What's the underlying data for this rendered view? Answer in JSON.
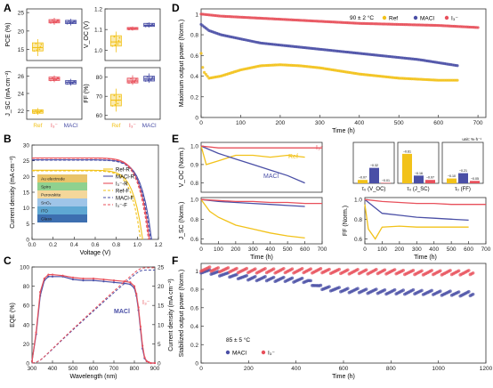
{
  "colors": {
    "ref": "#f2c21a",
    "i3": "#e8505b",
    "maci": "#4a4fa6",
    "axis": "#333333",
    "panel_label": "#000000"
  },
  "panels": {
    "A": "A",
    "B": "B",
    "C": "C",
    "D": "D",
    "E": "E",
    "F": "F"
  },
  "chart_data": [
    {
      "id": "A",
      "type": "box",
      "subplots": [
        {
          "ylabel": "PCE (%)",
          "yticks": [
            "15",
            "20",
            "25"
          ],
          "ylim": [
            12,
            26
          ],
          "groups": [
            {
              "label": "Ref",
              "median": 15.5,
              "q1": 14.6,
              "q3": 16.8,
              "min": 13.2,
              "max": 17.8
            },
            {
              "label": "I₃⁻",
              "median": 22.6,
              "q1": 22.2,
              "q3": 23.1,
              "min": 21.7,
              "max": 23.6
            },
            {
              "label": "MACl",
              "median": 22.4,
              "q1": 22.0,
              "q3": 22.9,
              "min": 21.5,
              "max": 23.3
            }
          ]
        },
        {
          "ylabel": "V_OC (V)",
          "yticks": [
            "1.0",
            "1.1",
            "1.2"
          ],
          "ylim": [
            0.95,
            1.2
          ],
          "groups": [
            {
              "label": "Ref",
              "median": 1.04,
              "q1": 1.02,
              "q3": 1.07,
              "min": 0.99,
              "max": 1.09
            },
            {
              "label": "I₃⁻",
              "median": 1.105,
              "q1": 1.1,
              "q3": 1.11,
              "min": 1.095,
              "max": 1.115
            },
            {
              "label": "MACl",
              "median": 1.12,
              "q1": 1.115,
              "q3": 1.13,
              "min": 1.11,
              "max": 1.135
            }
          ]
        },
        {
          "ylabel": "J_SC (mA cm⁻²)",
          "yticks": [
            "22",
            "24",
            "26"
          ],
          "ylim": [
            21,
            27
          ],
          "groups": [
            {
              "label": "Ref",
              "median": 21.9,
              "q1": 21.7,
              "q3": 22.1,
              "min": 21.5,
              "max": 22.3
            },
            {
              "label": "I₃⁻",
              "median": 25.7,
              "q1": 25.5,
              "q3": 25.9,
              "min": 25.3,
              "max": 26.1
            },
            {
              "label": "MACl",
              "median": 25.3,
              "q1": 25.1,
              "q3": 25.5,
              "min": 24.9,
              "max": 25.7
            }
          ]
        },
        {
          "ylabel": "FF (%)",
          "yticks": [
            "60",
            "70",
            "80"
          ],
          "ylim": [
            58,
            85
          ],
          "groups": [
            {
              "label": "Ref",
              "median": 68,
              "q1": 65,
              "q3": 71,
              "min": 62,
              "max": 74
            },
            {
              "label": "I₃⁻",
              "median": 78,
              "q1": 77,
              "q3": 79.5,
              "min": 76,
              "max": 81
            },
            {
              "label": "MACl",
              "median": 79,
              "q1": 78,
              "q3": 80.5,
              "min": 77,
              "max": 82
            }
          ]
        }
      ]
    },
    {
      "id": "B",
      "type": "line",
      "xlabel": "Voltage (V)",
      "ylabel": "Current density (mA cm⁻²)",
      "xlim": [
        0,
        1.2
      ],
      "ylim": [
        0,
        30
      ],
      "xticks": [
        "0.0",
        "0.2",
        "0.4",
        "0.6",
        "0.8",
        "1.0",
        "1.2"
      ],
      "yticks": [
        "0",
        "5",
        "10",
        "15",
        "20",
        "25",
        "30"
      ],
      "legend": [
        "Ref-R",
        "MACl-R",
        "I₃⁻-R",
        "Ref-F",
        "MACl-F",
        "I₃⁻-F"
      ],
      "series": [
        {
          "name": "Ref-R",
          "jsc": 22.0,
          "voc": 1.05,
          "style": "solid",
          "color": "ref"
        },
        {
          "name": "MACl-R",
          "jsc": 25.3,
          "voc": 1.135,
          "style": "solid",
          "color": "maci"
        },
        {
          "name": "I₃⁻-R",
          "jsc": 25.9,
          "voc": 1.115,
          "style": "solid",
          "color": "i3"
        },
        {
          "name": "Ref-F",
          "jsc": 21.8,
          "voc": 1.03,
          "style": "dashed",
          "color": "ref"
        },
        {
          "name": "MACl-F",
          "jsc": 25.2,
          "voc": 1.125,
          "style": "dashed",
          "color": "maci"
        },
        {
          "name": "I₃⁻-F",
          "jsc": 25.8,
          "voc": 1.105,
          "style": "dashed",
          "color": "i3"
        }
      ],
      "stack": [
        {
          "label": "Au electrode",
          "color": "#e9c46a"
        },
        {
          "label": "Spiro",
          "color": "#8fd18f"
        },
        {
          "label": "Perovskite",
          "color": "#f4d79a"
        },
        {
          "label": "SnO₂",
          "color": "#9fc5e8"
        },
        {
          "label": "ITO",
          "color": "#5fa8d3"
        },
        {
          "label": "Glass",
          "color": "#3d6fb0"
        }
      ]
    },
    {
      "id": "C",
      "type": "line",
      "xlabel": "Wavelength (nm)",
      "ylabel": "EQE (%)",
      "y2label": "Current density (mA cm⁻²)",
      "xlim": [
        300,
        900
      ],
      "ylim": [
        0,
        100
      ],
      "y2lim": [
        0,
        25
      ],
      "xticks": [
        "300",
        "400",
        "500",
        "600",
        "700",
        "800",
        "900"
      ],
      "yticks": [
        "0",
        "20",
        "40",
        "60",
        "80",
        "100"
      ],
      "y2ticks": [
        "0",
        "5",
        "10",
        "15",
        "20",
        "25"
      ],
      "labels": [
        "MACl",
        "I₃⁻"
      ],
      "eqe": {
        "wavelength": [
          300,
          320,
          340,
          360,
          380,
          400,
          450,
          500,
          550,
          600,
          650,
          700,
          750,
          780,
          800,
          810,
          820,
          830,
          840,
          850,
          860,
          870,
          880,
          900
        ],
        "MACl": [
          2,
          30,
          70,
          86,
          90,
          90,
          90,
          87,
          86,
          86,
          85,
          84,
          83,
          82,
          78,
          70,
          55,
          35,
          15,
          5,
          2,
          1,
          0,
          0
        ],
        "I₃⁻": [
          2,
          32,
          74,
          88,
          92,
          92,
          91,
          89,
          88,
          88,
          87,
          86,
          85,
          84,
          80,
          72,
          58,
          38,
          18,
          6,
          2,
          1,
          0,
          0
        ]
      },
      "integrated_jsc": {
        "MACl": 24.2,
        "I₃⁻": 24.8
      }
    },
    {
      "id": "D",
      "type": "line",
      "xlabel": "Time (h)",
      "ylabel": "Maximum output power (Norm.)",
      "xlim": [
        0,
        720
      ],
      "ylim": [
        0,
        1.05
      ],
      "xticks": [
        "0",
        "100",
        "200",
        "300",
        "400",
        "500",
        "600",
        "700"
      ],
      "yticks": [
        "0",
        "0.2",
        "0.4",
        "0.6",
        "0.8",
        "1"
      ],
      "annotation": "90 ± 2 °C",
      "legend": [
        "Ref",
        "MACl",
        "I₃⁻"
      ],
      "series": [
        {
          "name": "Ref",
          "x": [
            0,
            5,
            20,
            50,
            100,
            150,
            200,
            250,
            300,
            350,
            400,
            450,
            500,
            550,
            600,
            650
          ],
          "y": [
            0.62,
            0.45,
            0.38,
            0.4,
            0.46,
            0.5,
            0.51,
            0.5,
            0.48,
            0.45,
            0.42,
            0.4,
            0.38,
            0.37,
            0.36,
            0.36
          ]
        },
        {
          "name": "MACl",
          "x": [
            0,
            20,
            50,
            100,
            150,
            200,
            250,
            300,
            350,
            400,
            450,
            500,
            550,
            600,
            650
          ],
          "y": [
            0.9,
            0.84,
            0.8,
            0.76,
            0.72,
            0.7,
            0.68,
            0.66,
            0.64,
            0.62,
            0.6,
            0.58,
            0.56,
            0.53,
            0.5
          ]
        },
        {
          "name": "I₃⁻",
          "x": [
            0,
            50,
            100,
            200,
            300,
            400,
            500,
            600,
            700
          ],
          "y": [
            1.0,
            0.98,
            0.97,
            0.95,
            0.93,
            0.91,
            0.9,
            0.89,
            0.87
          ]
        }
      ]
    },
    {
      "id": "E",
      "type": "line",
      "xlabel": "Time (h)",
      "subplots": [
        {
          "ylabel": "V_OC (Norm.)",
          "ylim": [
            0.75,
            1.02
          ],
          "yticks": [
            "0.8",
            "0.9",
            "1.0"
          ],
          "xlim": [
            0,
            700
          ],
          "labels": [
            "Ref",
            "MACl",
            "I₃⁻"
          ],
          "series": [
            {
              "name": "Ref",
              "x": [
                0,
                30,
                100,
                200,
                300,
                400,
                500,
                600
              ],
              "y": [
                1.0,
                0.9,
                0.92,
                0.95,
                0.95,
                0.94,
                0.95,
                0.94
              ]
            },
            {
              "name": "MACl",
              "x": [
                0,
                100,
                200,
                300,
                400,
                500,
                600
              ],
              "y": [
                1.0,
                0.96,
                0.93,
                0.9,
                0.87,
                0.84,
                0.8
              ]
            },
            {
              "name": "I₃⁻",
              "x": [
                0,
                100,
                200,
                300,
                400,
                500,
                600,
                700
              ],
              "y": [
                1.0,
                0.99,
                0.99,
                0.99,
                0.99,
                0.99,
                0.99,
                0.99
              ]
            }
          ]
        },
        {
          "ylabel": "J_SC (Norm.)",
          "ylim": [
            0.55,
            1.02
          ],
          "yticks": [
            "0.6",
            "0.8",
            "1.0"
          ],
          "xlim": [
            0,
            700
          ],
          "series": [
            {
              "name": "Ref",
              "x": [
                0,
                50,
                100,
                200,
                300,
                400,
                500,
                600
              ],
              "y": [
                1.0,
                0.88,
                0.82,
                0.74,
                0.7,
                0.66,
                0.63,
                0.61
              ]
            },
            {
              "name": "MACl",
              "x": [
                0,
                100,
                200,
                300,
                400,
                500,
                600
              ],
              "y": [
                1.0,
                0.98,
                0.97,
                0.96,
                0.95,
                0.94,
                0.93
              ]
            },
            {
              "name": "I₃⁻",
              "x": [
                0,
                100,
                200,
                300,
                400,
                500,
                600,
                700
              ],
              "y": [
                1.0,
                0.99,
                0.98,
                0.98,
                0.97,
                0.97,
                0.96,
                0.96
              ]
            }
          ]
        },
        {
          "ylabel": "FF (Norm.)",
          "ylim": [
            0.55,
            1.02
          ],
          "yticks": [
            "0.6",
            "0.8",
            "1.0"
          ],
          "xlim": [
            0,
            700
          ],
          "series": [
            {
              "name": "Ref",
              "x": [
                0,
                20,
                60,
                100,
                200,
                300,
                400,
                500,
                600
              ],
              "y": [
                0.95,
                0.7,
                0.6,
                0.72,
                0.73,
                0.72,
                0.72,
                0.72,
                0.72
              ]
            },
            {
              "name": "MACl",
              "x": [
                0,
                100,
                200,
                300,
                400,
                500,
                600
              ],
              "y": [
                1.0,
                0.86,
                0.84,
                0.82,
                0.81,
                0.8,
                0.79
              ]
            },
            {
              "name": "I₃⁻",
              "x": [
                0,
                100,
                200,
                300,
                400,
                500,
                600,
                700
              ],
              "y": [
                1.0,
                0.98,
                0.97,
                0.96,
                0.96,
                0.95,
                0.95,
                0.95
              ]
            }
          ]
        }
      ],
      "insets": [
        {
          "label": "τ₀ (V_OC)",
          "values": [
            {
              "name": "Ref",
              "v": 0.07
            },
            {
              "name": "MACl",
              "v": 0.32
            },
            {
              "name": "I₃⁻",
              "v": 0.01
            }
          ],
          "value_labels": [
            "~0.07",
            "~0.32",
            "~0.01"
          ]
        },
        {
          "label": "τ₀ (J_SC)",
          "values": [
            {
              "name": "Ref",
              "v": 0.61
            },
            {
              "name": "MACl",
              "v": 0.16
            },
            {
              "name": "I₃⁻",
              "v": 0.07
            }
          ],
          "value_labels": [
            "~0.61",
            "~0.16",
            "~0.07"
          ]
        },
        {
          "label": "τ₀ (FF)",
          "values": [
            {
              "name": "Ref",
              "v": 0.1
            },
            {
              "name": "MACl",
              "v": 0.21
            },
            {
              "name": "I₃⁻",
              "v": 0.05
            }
          ],
          "value_labels": [
            "~0.10",
            "~0.21",
            "~0.05"
          ],
          "unit": "unit: %·h⁻¹"
        }
      ]
    },
    {
      "id": "F",
      "type": "scatter",
      "xlabel": "Time (h)",
      "ylabel": "Stabilized output power (Norm.)",
      "xlim": [
        0,
        1200
      ],
      "ylim": [
        0,
        1.08
      ],
      "xticks": [
        "0",
        "200",
        "400",
        "600",
        "800",
        "1000",
        "1200"
      ],
      "yticks": [
        "0",
        "0.2",
        "0.4",
        "0.6",
        "0.8",
        "1"
      ],
      "annotation": "85 ± 5 °C",
      "legend": [
        "MACl",
        "I₃⁻"
      ],
      "series": [
        {
          "name": "MACl",
          "x": [
            0,
            100,
            200,
            300,
            400,
            450,
            500,
            600,
            700,
            800,
            900,
            1000,
            1100,
            1150
          ],
          "y": [
            1.0,
            0.96,
            0.92,
            0.91,
            0.9,
            0.89,
            0.82,
            0.79,
            0.78,
            0.77,
            0.77,
            0.76,
            0.75,
            0.75
          ]
        },
        {
          "name": "I₃⁻",
          "x": [
            0,
            100,
            200,
            300,
            400,
            500,
            600,
            700,
            800,
            900,
            1000,
            1100,
            1150
          ],
          "y": [
            1.02,
            1.01,
            1.0,
            1.0,
            1.0,
            1.0,
            0.99,
            0.99,
            0.99,
            0.98,
            0.98,
            0.98,
            0.98
          ]
        }
      ]
    }
  ]
}
